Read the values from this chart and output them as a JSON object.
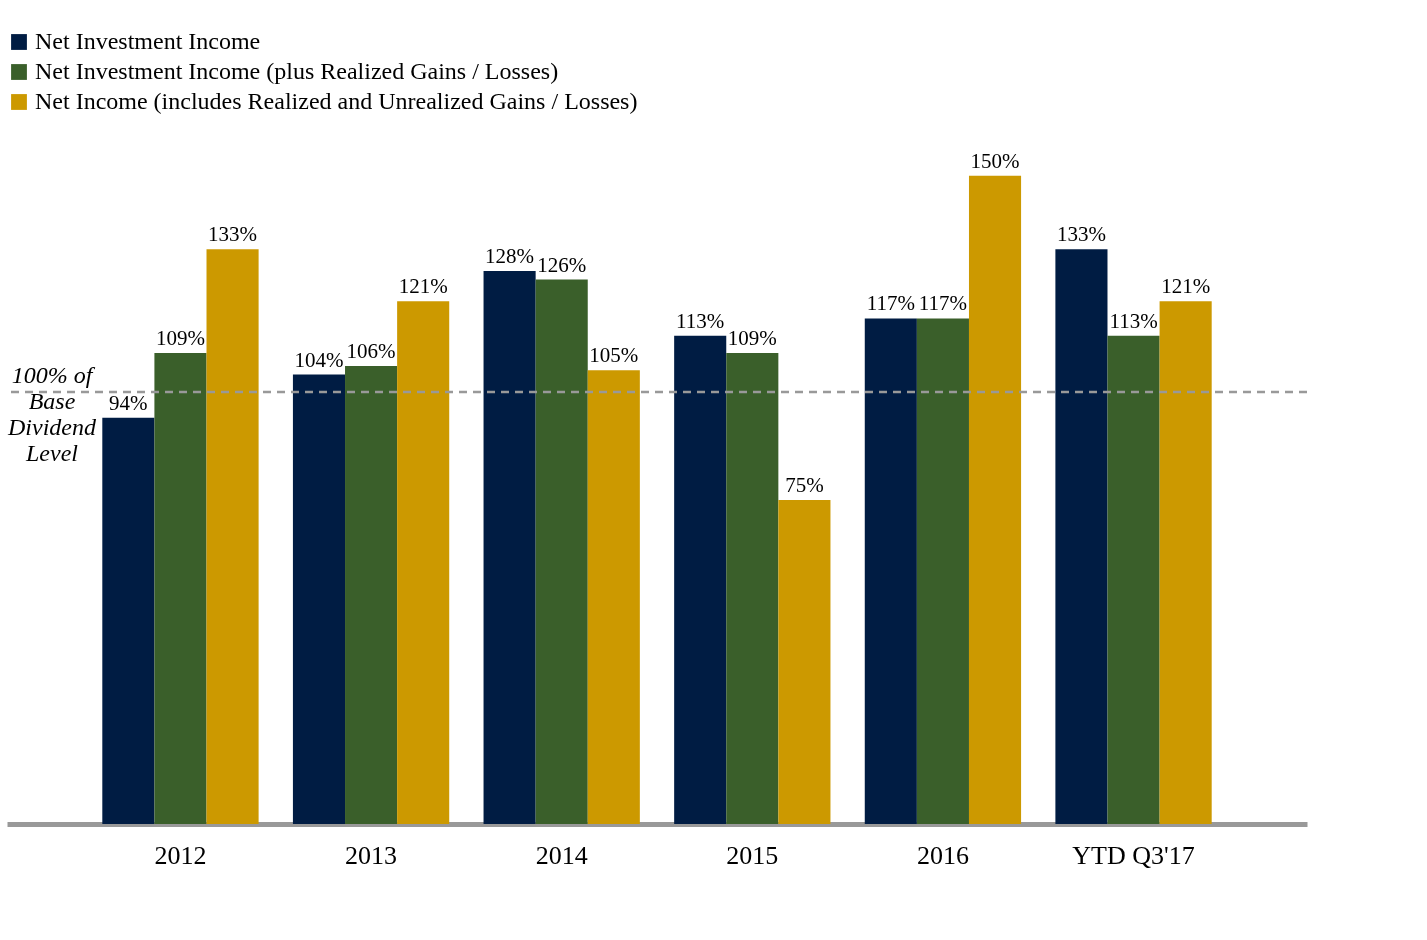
{
  "chart_data": {
    "type": "bar",
    "categories": [
      "2012",
      "2013",
      "2014",
      "2015",
      "2016",
      "YTD Q3'17"
    ],
    "series": [
      {
        "name": "Net Investment Income",
        "color": "#001c43",
        "values": [
          94,
          104,
          128,
          113,
          117,
          133
        ],
        "value_labels": [
          "94%",
          "104%",
          "128%",
          "113%",
          "117%",
          "133%"
        ]
      },
      {
        "name": "Net Investment Income (plus Realized Gains / Losses)",
        "color": "#3a5f2a",
        "values": [
          109,
          106,
          126,
          109,
          117,
          113
        ],
        "value_labels": [
          "109%",
          "106%",
          "126%",
          "109%",
          "117%",
          "113%"
        ]
      },
      {
        "name": "Net Income (includes Realized and Unrealized Gains / Losses)",
        "color": "#cc9900",
        "values": [
          133,
          121,
          105,
          75,
          150,
          121
        ],
        "value_labels": [
          "133%",
          "121%",
          "105%",
          "75%",
          "150%",
          "121%"
        ]
      }
    ],
    "ref_lines": [
      {
        "axis": "y",
        "value": 100,
        "label": "100% of\nBase\nDividend\nLevel",
        "color": "#999999",
        "line_style": "dashed"
      }
    ],
    "legend": "top",
    "grid": false
  }
}
